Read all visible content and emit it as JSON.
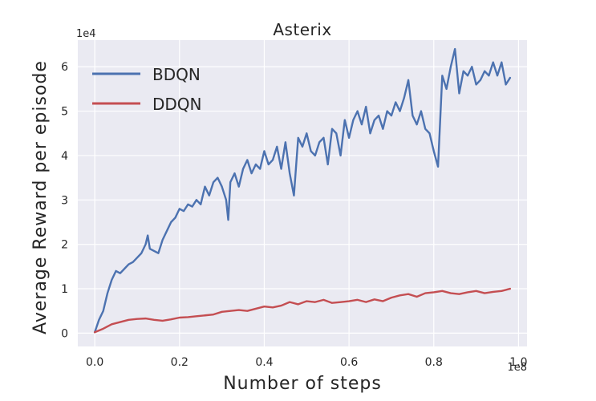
{
  "chart_data": {
    "type": "line",
    "title": "Asterix",
    "xlabel": "Number of steps",
    "ylabel": "Average Reward per episode",
    "x_offset_label": "1e8",
    "y_offset_label": "1e4",
    "xlim": [
      -0.04,
      1.02
    ],
    "ylim": [
      -0.3,
      6.6
    ],
    "x_ticks": [
      0.0,
      0.2,
      0.4,
      0.6,
      0.8,
      1.0
    ],
    "x_tick_labels": [
      "0.0",
      "0.2",
      "0.4",
      "0.6",
      "0.8",
      "1.0"
    ],
    "y_ticks": [
      0,
      1,
      2,
      3,
      4,
      5,
      6
    ],
    "y_tick_labels": [
      "0",
      "1",
      "2",
      "3",
      "4",
      "5",
      "6"
    ],
    "grid": true,
    "background": "#eaeaf2",
    "legend_position": "top-left",
    "series": [
      {
        "name": "BDQN",
        "color": "#4c72b0",
        "x": [
          0.0,
          0.01,
          0.02,
          0.03,
          0.04,
          0.05,
          0.06,
          0.07,
          0.08,
          0.09,
          0.1,
          0.11,
          0.12,
          0.125,
          0.13,
          0.14,
          0.15,
          0.16,
          0.17,
          0.18,
          0.19,
          0.2,
          0.21,
          0.22,
          0.23,
          0.24,
          0.25,
          0.26,
          0.27,
          0.28,
          0.29,
          0.3,
          0.31,
          0.315,
          0.32,
          0.33,
          0.34,
          0.35,
          0.36,
          0.37,
          0.38,
          0.39,
          0.4,
          0.41,
          0.42,
          0.43,
          0.44,
          0.45,
          0.46,
          0.47,
          0.48,
          0.49,
          0.5,
          0.51,
          0.52,
          0.53,
          0.54,
          0.55,
          0.56,
          0.57,
          0.58,
          0.59,
          0.6,
          0.61,
          0.62,
          0.63,
          0.64,
          0.65,
          0.66,
          0.67,
          0.68,
          0.69,
          0.7,
          0.71,
          0.72,
          0.73,
          0.74,
          0.75,
          0.76,
          0.77,
          0.78,
          0.79,
          0.8,
          0.81,
          0.82,
          0.83,
          0.84,
          0.85,
          0.86,
          0.87,
          0.88,
          0.89,
          0.9,
          0.91,
          0.92,
          0.93,
          0.94,
          0.95,
          0.96,
          0.97,
          0.98
        ],
        "y": [
          0.02,
          0.3,
          0.5,
          0.9,
          1.2,
          1.4,
          1.35,
          1.45,
          1.55,
          1.6,
          1.7,
          1.8,
          2.0,
          2.2,
          1.9,
          1.85,
          1.8,
          2.1,
          2.3,
          2.5,
          2.6,
          2.8,
          2.75,
          2.9,
          2.85,
          3.0,
          2.9,
          3.3,
          3.1,
          3.4,
          3.5,
          3.3,
          3.0,
          2.55,
          3.4,
          3.6,
          3.3,
          3.7,
          3.9,
          3.6,
          3.8,
          3.7,
          4.1,
          3.8,
          3.9,
          4.2,
          3.7,
          4.3,
          3.6,
          3.1,
          4.4,
          4.2,
          4.5,
          4.1,
          4.0,
          4.3,
          4.4,
          3.8,
          4.6,
          4.5,
          4.0,
          4.8,
          4.4,
          4.8,
          5.0,
          4.7,
          5.1,
          4.5,
          4.8,
          4.9,
          4.6,
          5.0,
          4.9,
          5.2,
          5.0,
          5.3,
          5.7,
          4.9,
          4.7,
          5.0,
          4.6,
          4.5,
          4.1,
          3.75,
          5.8,
          5.5,
          6.0,
          6.4,
          5.4,
          5.9,
          5.8,
          6.0,
          5.6,
          5.7,
          5.9,
          5.8,
          6.1,
          5.8,
          6.1,
          5.6,
          5.75
        ]
      },
      {
        "name": "DDQN",
        "color": "#c44e52",
        "x": [
          0.0,
          0.02,
          0.04,
          0.06,
          0.08,
          0.1,
          0.12,
          0.14,
          0.16,
          0.18,
          0.2,
          0.22,
          0.24,
          0.26,
          0.28,
          0.3,
          0.32,
          0.34,
          0.36,
          0.38,
          0.4,
          0.42,
          0.44,
          0.46,
          0.48,
          0.5,
          0.52,
          0.54,
          0.56,
          0.58,
          0.6,
          0.62,
          0.64,
          0.66,
          0.68,
          0.7,
          0.72,
          0.74,
          0.76,
          0.78,
          0.8,
          0.82,
          0.84,
          0.86,
          0.88,
          0.9,
          0.92,
          0.94,
          0.96,
          0.98
        ],
        "y": [
          0.02,
          0.1,
          0.2,
          0.25,
          0.3,
          0.32,
          0.33,
          0.3,
          0.28,
          0.31,
          0.35,
          0.36,
          0.38,
          0.4,
          0.42,
          0.48,
          0.5,
          0.52,
          0.5,
          0.55,
          0.6,
          0.58,
          0.62,
          0.7,
          0.65,
          0.72,
          0.7,
          0.75,
          0.68,
          0.7,
          0.72,
          0.75,
          0.7,
          0.76,
          0.72,
          0.8,
          0.85,
          0.88,
          0.82,
          0.9,
          0.92,
          0.95,
          0.9,
          0.88,
          0.92,
          0.95,
          0.9,
          0.93,
          0.95,
          1.0
        ]
      }
    ]
  }
}
